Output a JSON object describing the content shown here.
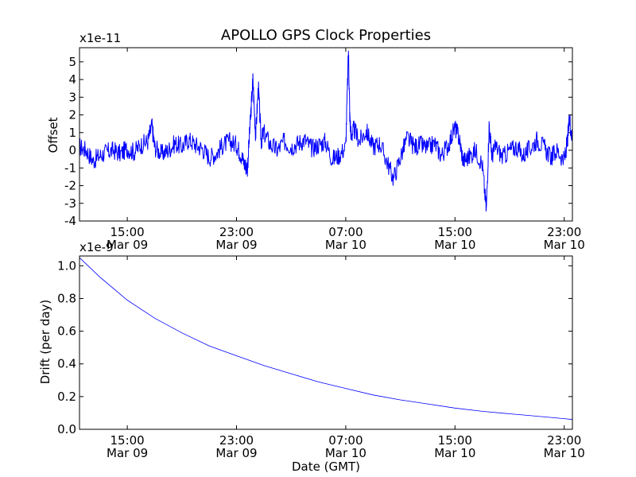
{
  "chart_data": [
    {
      "type": "line",
      "title": "APOLLO GPS Clock Properties",
      "ylabel": "Offset",
      "xlabel": "",
      "y_multiplier": "x1e-11",
      "ylim": [
        -4,
        5.8
      ],
      "x_ticks": [
        {
          "hour": 15,
          "time": "15:00",
          "date": "Mar 09"
        },
        {
          "hour": 23,
          "time": "23:00",
          "date": "Mar 09"
        },
        {
          "hour": 31,
          "time": "07:00",
          "date": "Mar 10"
        },
        {
          "hour": 39,
          "time": "15:00",
          "date": "Mar 10"
        },
        {
          "hour": 47,
          "time": "23:00",
          "date": "Mar 10"
        }
      ],
      "xlim_hours": [
        11.5,
        47.6
      ],
      "y_ticks": [
        "-4",
        "-3",
        "-2",
        "-1",
        "0",
        "1",
        "2",
        "3",
        "4",
        "5"
      ],
      "series": [
        {
          "name": "offset",
          "color": "#0000ff",
          "x": [
            11.5,
            12.0,
            12.5,
            13.0,
            13.5,
            14.0,
            14.5,
            15.0,
            15.5,
            16.0,
            16.5,
            16.8,
            17.0,
            17.5,
            18.0,
            18.5,
            19.0,
            19.5,
            20.0,
            20.5,
            21.0,
            21.5,
            22.0,
            22.5,
            23.0,
            23.3,
            23.6,
            23.8,
            24.0,
            24.2,
            24.4,
            24.6,
            24.8,
            25.0,
            25.5,
            26.0,
            26.5,
            27.0,
            27.5,
            28.0,
            28.5,
            29.0,
            29.5,
            30.0,
            30.5,
            31.0,
            31.2,
            31.3,
            31.4,
            31.6,
            32.0,
            32.5,
            33.0,
            33.5,
            34.0,
            34.5,
            35.0,
            35.5,
            36.0,
            36.5,
            37.0,
            37.5,
            38.0,
            38.5,
            39.0,
            39.3,
            39.6,
            40.0,
            40.5,
            41.0,
            41.3,
            41.5,
            41.7,
            42.0,
            42.5,
            43.0,
            43.5,
            44.0,
            44.5,
            45.0,
            45.5,
            46.0,
            46.5,
            47.0,
            47.2,
            47.4,
            47.6
          ],
          "y": [
            0.2,
            0.0,
            -0.6,
            -0.3,
            -0.1,
            0.0,
            -0.2,
            0.1,
            -0.1,
            0.3,
            0.5,
            1.4,
            0.2,
            -0.2,
            0.0,
            0.4,
            0.2,
            0.6,
            0.3,
            0.1,
            -0.4,
            -0.2,
            0.3,
            0.5,
            0.3,
            -0.2,
            -0.8,
            -1.0,
            1.5,
            4.0,
            0.8,
            3.6,
            0.5,
            1.0,
            0.3,
            0.0,
            0.5,
            0.2,
            0.4,
            0.6,
            0.1,
            0.3,
            0.5,
            -0.5,
            -0.3,
            0.2,
            5.6,
            1.8,
            0.8,
            1.2,
            0.5,
            1.1,
            0.2,
            0.4,
            -0.6,
            -1.6,
            -0.4,
            0.7,
            0.2,
            0.3,
            0.1,
            0.4,
            -0.3,
            0.3,
            1.3,
            0.7,
            -0.6,
            -0.4,
            0.0,
            -0.8,
            -3.4,
            1.4,
            -0.3,
            0.2,
            -0.4,
            0.0,
            0.2,
            -0.3,
            0.1,
            0.6,
            0.2,
            -0.4,
            0.0,
            -0.6,
            0.3,
            1.8,
            0.5
          ]
        }
      ]
    },
    {
      "type": "line",
      "title": "",
      "ylabel": "Drift (per day)",
      "xlabel": "Date (GMT)",
      "y_multiplier": "x1e-9",
      "ylim": [
        0.0,
        1.06
      ],
      "x_ticks": [
        {
          "hour": 15,
          "time": "15:00",
          "date": "Mar 09"
        },
        {
          "hour": 23,
          "time": "23:00",
          "date": "Mar 09"
        },
        {
          "hour": 31,
          "time": "07:00",
          "date": "Mar 10"
        },
        {
          "hour": 39,
          "time": "15:00",
          "date": "Mar 10"
        },
        {
          "hour": 47,
          "time": "23:00",
          "date": "Mar 10"
        }
      ],
      "xlim_hours": [
        11.5,
        47.6
      ],
      "y_ticks": [
        "0.0",
        "0.2",
        "0.4",
        "0.6",
        "0.8",
        "1.0"
      ],
      "series": [
        {
          "name": "drift",
          "color": "#0000ff",
          "x": [
            11.5,
            13.0,
            15.0,
            17.0,
            19.0,
            21.0,
            23.0,
            25.0,
            27.0,
            29.0,
            31.0,
            33.0,
            35.0,
            37.0,
            39.0,
            41.0,
            43.0,
            45.0,
            47.0,
            47.6
          ],
          "y": [
            1.05,
            0.93,
            0.79,
            0.68,
            0.59,
            0.51,
            0.45,
            0.39,
            0.34,
            0.29,
            0.25,
            0.21,
            0.18,
            0.155,
            0.13,
            0.11,
            0.095,
            0.08,
            0.065,
            0.06
          ]
        }
      ]
    }
  ]
}
